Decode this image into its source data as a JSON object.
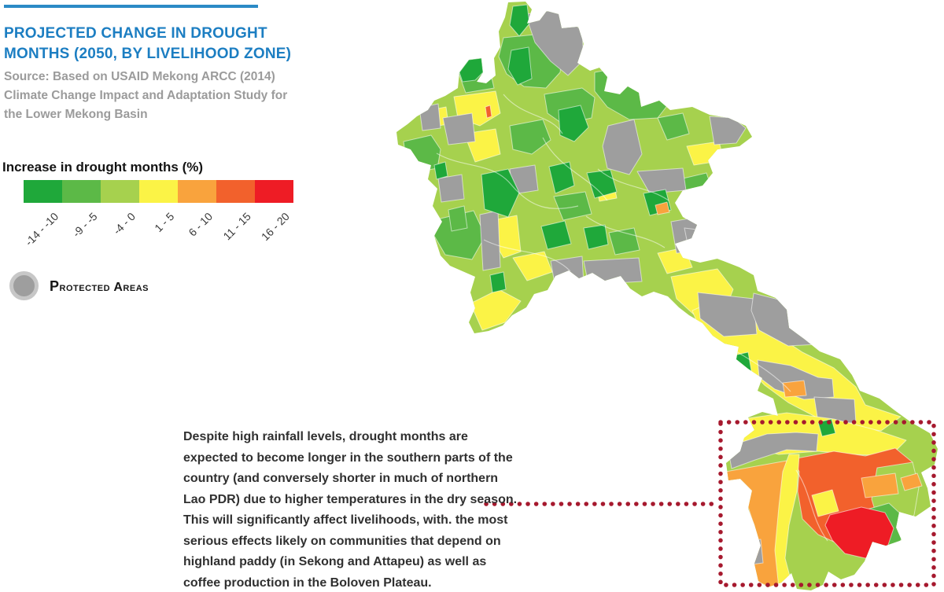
{
  "header": {
    "title_lines": [
      "PROJECTED CHANGE IN DROUGHT",
      "MONTHS (2050, BY LIVELIHOOD ZONE)"
    ],
    "source": "Source: Based on USAID Mekong ARCC (2014) Climate Change Impact and Adaptation Study for the Lower Mekong Basin"
  },
  "legend": {
    "title": "Increase in drought months (%)",
    "classes": [
      {
        "label": "-14 - -10",
        "color": "#1fa83a"
      },
      {
        "label": "-9 - -5",
        "color": "#5cb947"
      },
      {
        "label": "-4 - 0",
        "color": "#a6d14e"
      },
      {
        "label": "1 - 5",
        "color": "#fbf346"
      },
      {
        "label": "6 - 10",
        "color": "#f9a33d"
      },
      {
        "label": "11 - 15",
        "color": "#f2612c"
      },
      {
        "label": "16 - 20",
        "color": "#ee1c25"
      }
    ],
    "protected_areas_label": "Protected Areas",
    "protected_color": "#9e9e9e"
  },
  "annotation": {
    "text": "Despite high rainfall levels, drought months are expected to become longer in the southern parts of the country (and conversely shorter in much of northern Lao PDR) due to higher temperatures in the dry season. This will significantly affect livelihoods, with. the most serious effects likely on communities that depend on highland paddy (in Sekong and Attapeu) as well as coffee production in the Boloven Plateau.",
    "callout_color": "#a6192e"
  },
  "colors": {
    "title_blue": "#1c7ec2",
    "rule_blue": "#2b8ac6",
    "source_gray": "#9b9b9b"
  }
}
